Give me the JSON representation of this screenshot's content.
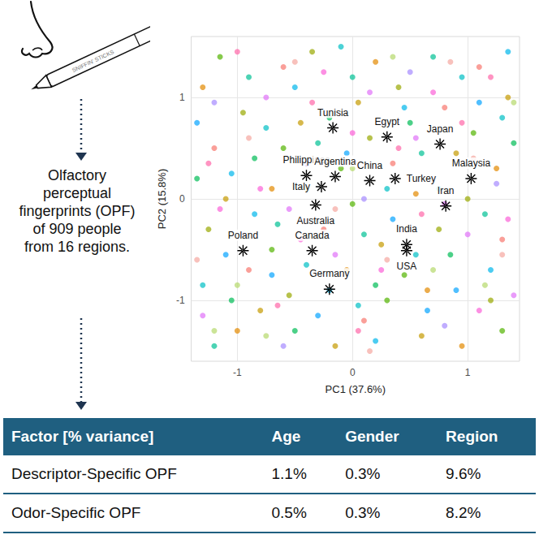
{
  "caption": "Olfactory perceptual fingerprints (OPF) of 909 people from 16 regions.",
  "icon_label": "SNIFFIN' STICKS",
  "chart_data": {
    "type": "scatter",
    "x_label": "PC1 (37.6%)",
    "y_label": "PC2 (15.8%)",
    "xlim": [
      -1.4,
      1.45
    ],
    "ylim": [
      -1.6,
      1.6
    ],
    "xticks": [
      -1,
      0,
      1
    ],
    "yticks": [
      -1,
      0,
      1
    ],
    "grid": true,
    "series": [
      {
        "color": "#F8766D",
        "marker": "circle",
        "values": [
          [
            -1.2,
            0.5
          ],
          [
            -0.6,
            1.3
          ],
          [
            0.1,
            -1.2
          ],
          [
            0.8,
            0.9
          ],
          [
            1.3,
            -0.4
          ],
          [
            -0.9,
            -0.7
          ],
          [
            0.35,
            0.35
          ],
          [
            -0.25,
            -0.3
          ],
          [
            1.1,
            1.3
          ]
        ]
      },
      {
        "color": "#E38900",
        "marker": "circle",
        "values": [
          [
            -1.3,
            1.1
          ],
          [
            -0.7,
            0.1
          ],
          [
            0.2,
            1.35
          ],
          [
            0.65,
            -0.9
          ],
          [
            1.25,
            0.3
          ],
          [
            -0.05,
            -0.7
          ],
          [
            -1.0,
            -1.3
          ],
          [
            0.55,
            0.05
          ],
          [
            0.95,
            -1.45
          ]
        ]
      },
      {
        "color": "#C49A00",
        "marker": "circle",
        "values": [
          [
            -1.1,
            0.0
          ],
          [
            -0.45,
            0.75
          ],
          [
            0.25,
            -0.45
          ],
          [
            0.9,
            0.45
          ],
          [
            1.35,
            1.0
          ],
          [
            -0.8,
            -1.1
          ],
          [
            0.05,
            0.95
          ],
          [
            0.6,
            -1.35
          ],
          [
            -0.15,
            -1.45
          ]
        ]
      },
      {
        "color": "#99A800",
        "marker": "circle",
        "values": [
          [
            -1.25,
            -0.3
          ],
          [
            -0.55,
            -0.95
          ],
          [
            0.15,
            0.6
          ],
          [
            0.75,
            -0.3
          ],
          [
            1.2,
            -1.0
          ],
          [
            -0.95,
            0.85
          ],
          [
            0.4,
            1.1
          ],
          [
            -0.35,
            1.45
          ],
          [
            1.0,
            0.0
          ]
        ]
      },
      {
        "color": "#53B400",
        "marker": "circle",
        "values": [
          [
            -1.15,
            1.4
          ],
          [
            -0.6,
            0.5
          ],
          [
            -0.1,
            0.3
          ],
          [
            0.45,
            -0.75
          ],
          [
            1.05,
            0.65
          ],
          [
            0.3,
            -1.0
          ],
          [
            -0.7,
            -0.5
          ],
          [
            1.3,
            -1.3
          ],
          [
            0.0,
            -0.05
          ]
        ]
      },
      {
        "color": "#00BC56",
        "marker": "circle",
        "values": [
          [
            -1.35,
            0.2
          ],
          [
            -0.85,
            0.4
          ],
          [
            -0.2,
            0.8
          ],
          [
            0.5,
            0.75
          ],
          [
            0.85,
            -0.55
          ],
          [
            1.4,
            0.55
          ],
          [
            -0.5,
            -1.3
          ],
          [
            0.2,
            -0.85
          ],
          [
            -1.05,
            -1.0
          ]
        ]
      },
      {
        "color": "#00C094",
        "marker": "circle",
        "values": [
          [
            -1.2,
            -1.45
          ],
          [
            -0.65,
            -0.25
          ],
          [
            0.0,
            1.2
          ],
          [
            0.6,
            0.45
          ],
          [
            1.15,
            -0.15
          ],
          [
            -0.3,
            0.55
          ],
          [
            0.7,
            1.4
          ],
          [
            0.1,
            -0.35
          ],
          [
            -0.9,
            1.2
          ]
        ]
      },
      {
        "color": "#00BFC4",
        "marker": "circle",
        "values": [
          [
            -1.3,
            -0.85
          ],
          [
            -0.4,
            -0.65
          ],
          [
            0.3,
            0.1
          ],
          [
            0.95,
            1.2
          ],
          [
            1.3,
            0.8
          ],
          [
            -0.75,
            0.7
          ],
          [
            0.05,
            -1.05
          ],
          [
            0.55,
            -0.55
          ],
          [
            -0.1,
            1.5
          ]
        ]
      },
      {
        "color": "#00B6EB",
        "marker": "circle",
        "values": [
          [
            -1.05,
            0.25
          ],
          [
            -0.5,
            1.1
          ],
          [
            0.2,
            -1.4
          ],
          [
            0.75,
            0.1
          ],
          [
            1.2,
            -0.7
          ],
          [
            -0.85,
            -0.15
          ],
          [
            0.45,
            0.9
          ],
          [
            -0.2,
            -0.9
          ],
          [
            1.35,
            1.45
          ]
        ]
      },
      {
        "color": "#06A4FF",
        "marker": "circle",
        "values": [
          [
            -1.35,
            0.75
          ],
          [
            -0.7,
            -0.75
          ],
          [
            -0.05,
            0.45
          ],
          [
            0.65,
            -1.1
          ],
          [
            1.1,
            0.95
          ],
          [
            -0.3,
            -1.15
          ],
          [
            0.35,
            -0.2
          ],
          [
            0.9,
            -0.9
          ],
          [
            -1.1,
            -0.55
          ]
        ]
      },
      {
        "color": "#A58AFF",
        "marker": "circle",
        "values": [
          [
            -1.2,
            0.95
          ],
          [
            -0.6,
            -1.45
          ],
          [
            0.1,
            0.0
          ],
          [
            0.8,
            -1.25
          ],
          [
            1.25,
            0.15
          ],
          [
            -0.4,
            0.35
          ],
          [
            0.5,
            1.25
          ],
          [
            -0.95,
            -0.35
          ],
          [
            0.25,
            0.75
          ]
        ]
      },
      {
        "color": "#DF70F8",
        "marker": "circle",
        "values": [
          [
            -1.3,
            -1.15
          ],
          [
            -0.75,
            1.0
          ],
          [
            -0.15,
            -0.55
          ],
          [
            0.55,
            0.6
          ],
          [
            1.0,
            -0.35
          ],
          [
            0.15,
            1.05
          ],
          [
            1.4,
            -0.95
          ],
          [
            -0.55,
            -0.1
          ],
          [
            0.8,
            -0.05
          ]
        ]
      },
      {
        "color": "#FB61D7",
        "marker": "circle",
        "values": [
          [
            -1.15,
            -0.1
          ],
          [
            -0.45,
            -0.4
          ],
          [
            0.25,
            -0.7
          ],
          [
            0.7,
            1.05
          ],
          [
            1.35,
            -0.2
          ],
          [
            -0.8,
            0.1
          ],
          [
            0.0,
            0.65
          ],
          [
            -0.25,
            1.25
          ],
          [
            1.1,
            -1.1
          ]
        ]
      },
      {
        "color": "#FF66A8",
        "marker": "circle",
        "values": [
          [
            -1.25,
            0.35
          ],
          [
            -0.65,
            -1.05
          ],
          [
            0.05,
            -1.3
          ],
          [
            0.4,
            0.5
          ],
          [
            0.95,
            0.75
          ],
          [
            -1.0,
            1.45
          ],
          [
            1.2,
            1.2
          ],
          [
            -0.35,
            0.95
          ],
          [
            0.6,
            -0.15
          ]
        ]
      },
      {
        "color": "#F5A7A0",
        "marker": "circle",
        "values": [
          [
            -1.35,
            -0.6
          ],
          [
            -0.9,
            0.6
          ],
          [
            -0.15,
            -0.1
          ],
          [
            0.3,
            -0.6
          ],
          [
            0.85,
            1.35
          ],
          [
            1.3,
            -0.55
          ],
          [
            -0.5,
            1.35
          ],
          [
            0.15,
            -1.5
          ],
          [
            1.05,
            0.4
          ]
        ]
      },
      {
        "color": "#B5D86B",
        "marker": "circle",
        "values": [
          [
            -1.0,
            -0.85
          ],
          [
            -0.4,
            0.1
          ],
          [
            0.35,
            1.4
          ],
          [
            0.7,
            -0.7
          ],
          [
            1.4,
            0.95
          ],
          [
            -1.2,
            -1.3
          ],
          [
            0.0,
            0.3
          ],
          [
            -0.75,
            -1.35
          ],
          [
            1.15,
            -0.85
          ]
        ]
      },
      {
        "color": "#000000",
        "marker": "asterisk",
        "labels": [
          "Tunisia",
          "Egypt",
          "Japan",
          "Philippines",
          "Argentina",
          "Italy",
          "Australia",
          "China",
          "Turkey",
          "Malaysia",
          "Iran",
          "Poland",
          "Canada",
          "India",
          "USA",
          "Germany"
        ],
        "values": [
          [
            -0.17,
            0.7
          ],
          [
            0.3,
            0.61
          ],
          [
            0.76,
            0.54
          ],
          [
            -0.4,
            0.23
          ],
          [
            -0.15,
            0.22
          ],
          [
            -0.27,
            0.12
          ],
          [
            -0.32,
            -0.06
          ],
          [
            0.15,
            0.18
          ],
          [
            0.37,
            0.2
          ],
          [
            1.03,
            0.2
          ],
          [
            0.81,
            -0.07
          ],
          [
            -0.95,
            -0.51
          ],
          [
            -0.35,
            -0.51
          ],
          [
            0.47,
            -0.45
          ],
          [
            0.47,
            -0.51
          ],
          [
            -0.2,
            -0.89
          ]
        ]
      }
    ]
  },
  "table": {
    "header": [
      "Factor [% variance]",
      "Age",
      "Gender",
      "Region"
    ],
    "rows": [
      [
        "Descriptor-Specific OPF",
        "1.1%",
        "0.3%",
        "9.6%"
      ],
      [
        "Odor-Specific OPF",
        "0.5%",
        "0.3%",
        "8.2%"
      ]
    ]
  }
}
